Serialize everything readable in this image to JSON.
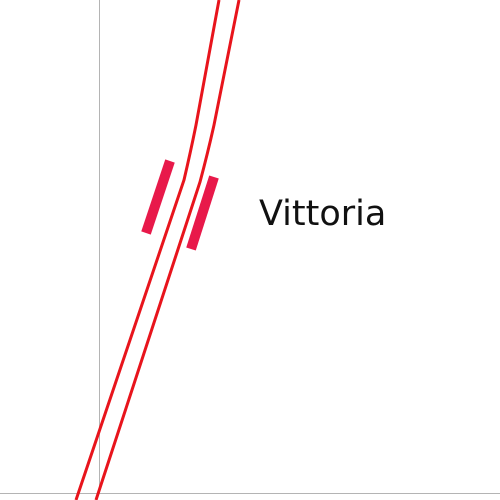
{
  "map": {
    "station": {
      "name": "Vittoria"
    },
    "colors": {
      "track": "#e8141c",
      "station_marker": "#e8194a",
      "boundary": "#b4b4b4",
      "background": "#ffffff"
    }
  }
}
